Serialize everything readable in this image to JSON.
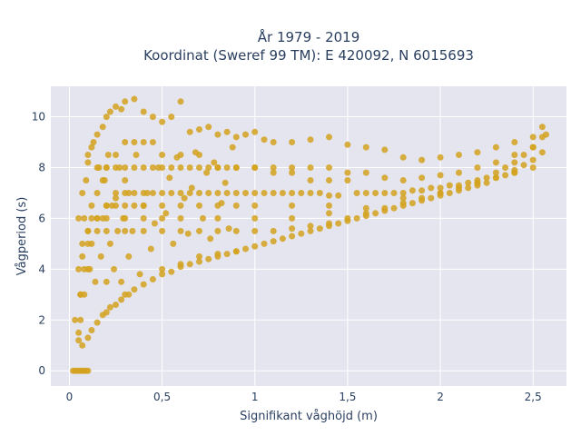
{
  "chart_data": {
    "type": "scatter",
    "title": "År 1979 - 2019",
    "subtitle": "Koordinat (Sweref 99 TM): E 420092, N 6015693",
    "xlabel": "Signifikant våghöjd (m)",
    "ylabel": "Vågperiod (s)",
    "xlim": [
      -0.1,
      2.68
    ],
    "ylim": [
      -0.6,
      11.2
    ],
    "x_ticks": [
      0,
      0.5,
      1,
      1.5,
      2,
      2.5
    ],
    "x_tick_labels": [
      "0",
      "0,5",
      "1",
      "1,5",
      "2",
      "2,5"
    ],
    "y_ticks": [
      0,
      2,
      4,
      6,
      8,
      10
    ],
    "y_tick_labels": [
      "0",
      "2",
      "4",
      "6",
      "8",
      "10"
    ],
    "grid": true,
    "legend": "none",
    "point_color": "#d4a21f",
    "background_color": "#e5e5f0",
    "series": [
      {
        "x": [
          0.02,
          0.03,
          0.04,
          0.05,
          0.06,
          0.07,
          0.08,
          0.09,
          0.1,
          0.03,
          0.05,
          0.07,
          0.1,
          0.12,
          0.15,
          0.18,
          0.2,
          0.22,
          0.25,
          0.28,
          0.3,
          0.32,
          0.35,
          0.4,
          0.45,
          0.5,
          0.55,
          0.6,
          0.65,
          0.7,
          0.75,
          0.8,
          0.85,
          0.9,
          0.95,
          1.0,
          1.05,
          1.1,
          1.15,
          1.2,
          1.25,
          1.3,
          1.35,
          1.4,
          1.45,
          1.5,
          1.55,
          1.6,
          1.65,
          1.7,
          1.75,
          1.8,
          1.85,
          1.9,
          1.95,
          2.0,
          2.05,
          2.1,
          2.15,
          2.2,
          2.25,
          2.3,
          2.35,
          2.4,
          2.45,
          2.5,
          2.55,
          0.05,
          0.07,
          0.1,
          0.12,
          0.15,
          0.18,
          0.2,
          0.22,
          0.25,
          0.28,
          0.3,
          0.35,
          0.4,
          0.45,
          0.5,
          0.55,
          0.6,
          0.65,
          0.7,
          0.75,
          0.8,
          0.85,
          0.9,
          0.95,
          1.0,
          1.05,
          1.1,
          1.2,
          1.3,
          1.4,
          1.5,
          1.6,
          1.7,
          1.8,
          1.9,
          2.0,
          2.1,
          2.2,
          2.3,
          2.4,
          2.5,
          2.55,
          0.2,
          0.25,
          0.3,
          0.32,
          0.35,
          0.4,
          0.45,
          0.5,
          0.55,
          0.6,
          0.65,
          0.7,
          0.75,
          0.8,
          0.85,
          0.9,
          0.95,
          1.0,
          1.05,
          1.1,
          1.15,
          1.2,
          1.25,
          1.3,
          1.35,
          1.4,
          1.45,
          1.55,
          1.6,
          1.65,
          1.7,
          1.75,
          1.8,
          1.85,
          1.9,
          1.95,
          2.0,
          2.05,
          2.1,
          2.15,
          2.2,
          2.25,
          2.3,
          2.35,
          2.4,
          2.45,
          2.5,
          2.55,
          2.57,
          0.06,
          0.08,
          0.1,
          0.12,
          0.15,
          0.18,
          0.2,
          0.25,
          0.3,
          0.35,
          0.4,
          0.45,
          0.5,
          0.6,
          0.7,
          0.8,
          0.9,
          1.0,
          1.1,
          1.2,
          1.3,
          1.4,
          1.5,
          0.06,
          0.08,
          0.1,
          0.12,
          0.15,
          0.2,
          0.25,
          0.3,
          0.35,
          0.4,
          0.5,
          0.6,
          0.7,
          0.8,
          0.9,
          1.0,
          1.2,
          1.4,
          0.05,
          0.07,
          0.1,
          0.15,
          0.2,
          0.3,
          0.4,
          0.5,
          0.6,
          0.8,
          1.0,
          1.2,
          1.4,
          1.6,
          1.8,
          2.0,
          2.2,
          2.4,
          0.1,
          0.2,
          0.3,
          0.4,
          0.5,
          0.6,
          0.7,
          0.8,
          0.9,
          1.0,
          1.1,
          1.2,
          1.3,
          1.4,
          1.5,
          1.6,
          1.7,
          1.8,
          1.9,
          2.0,
          2.1,
          2.2,
          2.3,
          2.4,
          2.5,
          0.15,
          0.2,
          0.25,
          0.3,
          0.35,
          0.4,
          0.45,
          0.5,
          0.55,
          0.6,
          0.65,
          0.7,
          0.75,
          0.8,
          0.85,
          0.9,
          1.0,
          1.1,
          1.2,
          1.3,
          1.4,
          1.5,
          1.6,
          1.7,
          1.8,
          1.9,
          2.0,
          2.1,
          2.2,
          2.3,
          2.4,
          2.5,
          0.05,
          0.06,
          0.07,
          0.08,
          0.09,
          0.1,
          0.11,
          0.12,
          0.13,
          0.14,
          0.15,
          0.16,
          0.17,
          0.18,
          0.19,
          0.2,
          0.21,
          0.22,
          0.23,
          0.24,
          0.25,
          0.26,
          0.27,
          0.28,
          0.29,
          0.3,
          0.32,
          0.34,
          0.36,
          0.38,
          0.4,
          0.42,
          0.44,
          0.46,
          0.48,
          0.5,
          0.52,
          0.54,
          0.56,
          0.58,
          0.6,
          0.62,
          0.64,
          0.66,
          0.68,
          0.7,
          0.72,
          0.74,
          0.76,
          0.78,
          0.8,
          0.82,
          0.84,
          0.86,
          0.88,
          0.9
        ],
        "y": [
          0,
          0,
          0,
          0,
          0,
          0,
          0,
          0,
          0,
          2.0,
          1.2,
          1.0,
          1.3,
          1.6,
          1.9,
          2.2,
          2.3,
          2.5,
          2.6,
          2.8,
          3.0,
          3.0,
          3.2,
          3.4,
          3.6,
          3.8,
          3.9,
          4.1,
          4.2,
          4.3,
          4.4,
          4.5,
          4.6,
          4.7,
          4.8,
          4.9,
          5.0,
          5.1,
          5.2,
          5.3,
          5.4,
          5.5,
          5.6,
          5.7,
          5.8,
          5.9,
          6.0,
          6.1,
          6.2,
          6.3,
          6.4,
          6.5,
          6.6,
          6.7,
          6.8,
          6.9,
          7.0,
          7.1,
          7.2,
          7.3,
          7.4,
          7.6,
          7.7,
          7.9,
          8.1,
          8.3,
          8.6,
          6.0,
          7.0,
          8.2,
          8.8,
          9.3,
          9.6,
          10.0,
          10.2,
          10.4,
          10.3,
          10.6,
          10.7,
          10.2,
          10.0,
          9.8,
          10.0,
          10.6,
          9.4,
          9.5,
          9.6,
          9.3,
          9.4,
          9.2,
          9.3,
          9.4,
          9.1,
          9.0,
          9.0,
          9.1,
          9.2,
          8.9,
          8.8,
          8.7,
          8.4,
          8.3,
          8.4,
          8.5,
          8.6,
          8.8,
          9.0,
          9.2,
          9.6,
          6.5,
          6.8,
          7.0,
          7.0,
          7.0,
          7.0,
          7.0,
          7.0,
          7.0,
          7.0,
          7.0,
          7.0,
          7.0,
          7.0,
          7.0,
          7.0,
          7.0,
          7.0,
          7.0,
          7.0,
          7.0,
          7.0,
          7.0,
          7.0,
          7.0,
          6.9,
          6.9,
          7.0,
          7.0,
          7.0,
          7.0,
          7.0,
          7.0,
          7.1,
          7.1,
          7.2,
          7.2,
          7.3,
          7.3,
          7.4,
          7.5,
          7.6,
          7.8,
          8.0,
          8.2,
          8.5,
          8.8,
          9.2,
          9.3,
          3.0,
          4.0,
          5.0,
          6.0,
          7.0,
          7.5,
          8.0,
          8.5,
          9.0,
          9.0,
          9.0,
          9.0,
          8.5,
          8.5,
          8.5,
          8.0,
          8.0,
          8.0,
          7.8,
          7.8,
          7.5,
          7.5,
          7.5,
          2.0,
          3.0,
          4.0,
          5.0,
          6.0,
          6.5,
          6.5,
          6.5,
          6.5,
          6.5,
          6.5,
          6.5,
          6.5,
          6.5,
          6.5,
          6.5,
          6.5,
          6.5,
          4.0,
          5.0,
          5.5,
          6.0,
          6.0,
          6.0,
          6.0,
          6.0,
          6.0,
          6.0,
          6.0,
          6.0,
          6.2,
          6.4,
          6.8,
          7.0,
          7.4,
          7.8,
          5.5,
          5.5,
          5.5,
          5.5,
          5.5,
          5.5,
          5.5,
          5.5,
          5.5,
          5.5,
          5.5,
          5.6,
          5.7,
          5.8,
          6.0,
          6.2,
          6.4,
          6.6,
          6.8,
          7.0,
          7.2,
          7.4,
          7.6,
          7.8,
          8.0,
          8.0,
          8.0,
          8.0,
          8.0,
          8.0,
          8.0,
          8.0,
          8.0,
          8.0,
          8.0,
          8.0,
          8.0,
          8.0,
          8.0,
          8.0,
          8.0,
          8.0,
          8.0,
          8.0,
          8.0,
          8.0,
          7.8,
          7.8,
          7.6,
          7.5,
          7.6,
          7.7,
          7.8,
          8.0,
          8.2,
          8.5,
          8.8,
          1.5,
          3.0,
          4.5,
          6.0,
          7.5,
          8.5,
          4.0,
          6.5,
          9.0,
          3.5,
          5.5,
          8.0,
          4.5,
          6.0,
          7.5,
          3.5,
          8.5,
          5.0,
          6.5,
          4.0,
          7.0,
          5.5,
          8.0,
          3.5,
          6.0,
          7.5,
          4.5,
          5.5,
          8.5,
          3.8,
          6.5,
          7.0,
          4.8,
          5.8,
          8.0,
          4.0,
          6.2,
          7.6,
          5.0,
          8.4,
          4.2,
          6.8,
          5.4,
          7.2,
          8.6,
          4.5,
          6.0,
          7.8,
          5.2,
          8.2,
          4.6,
          6.6,
          7.4,
          5.6,
          8.8,
          4.7
        ]
      }
    ]
  }
}
